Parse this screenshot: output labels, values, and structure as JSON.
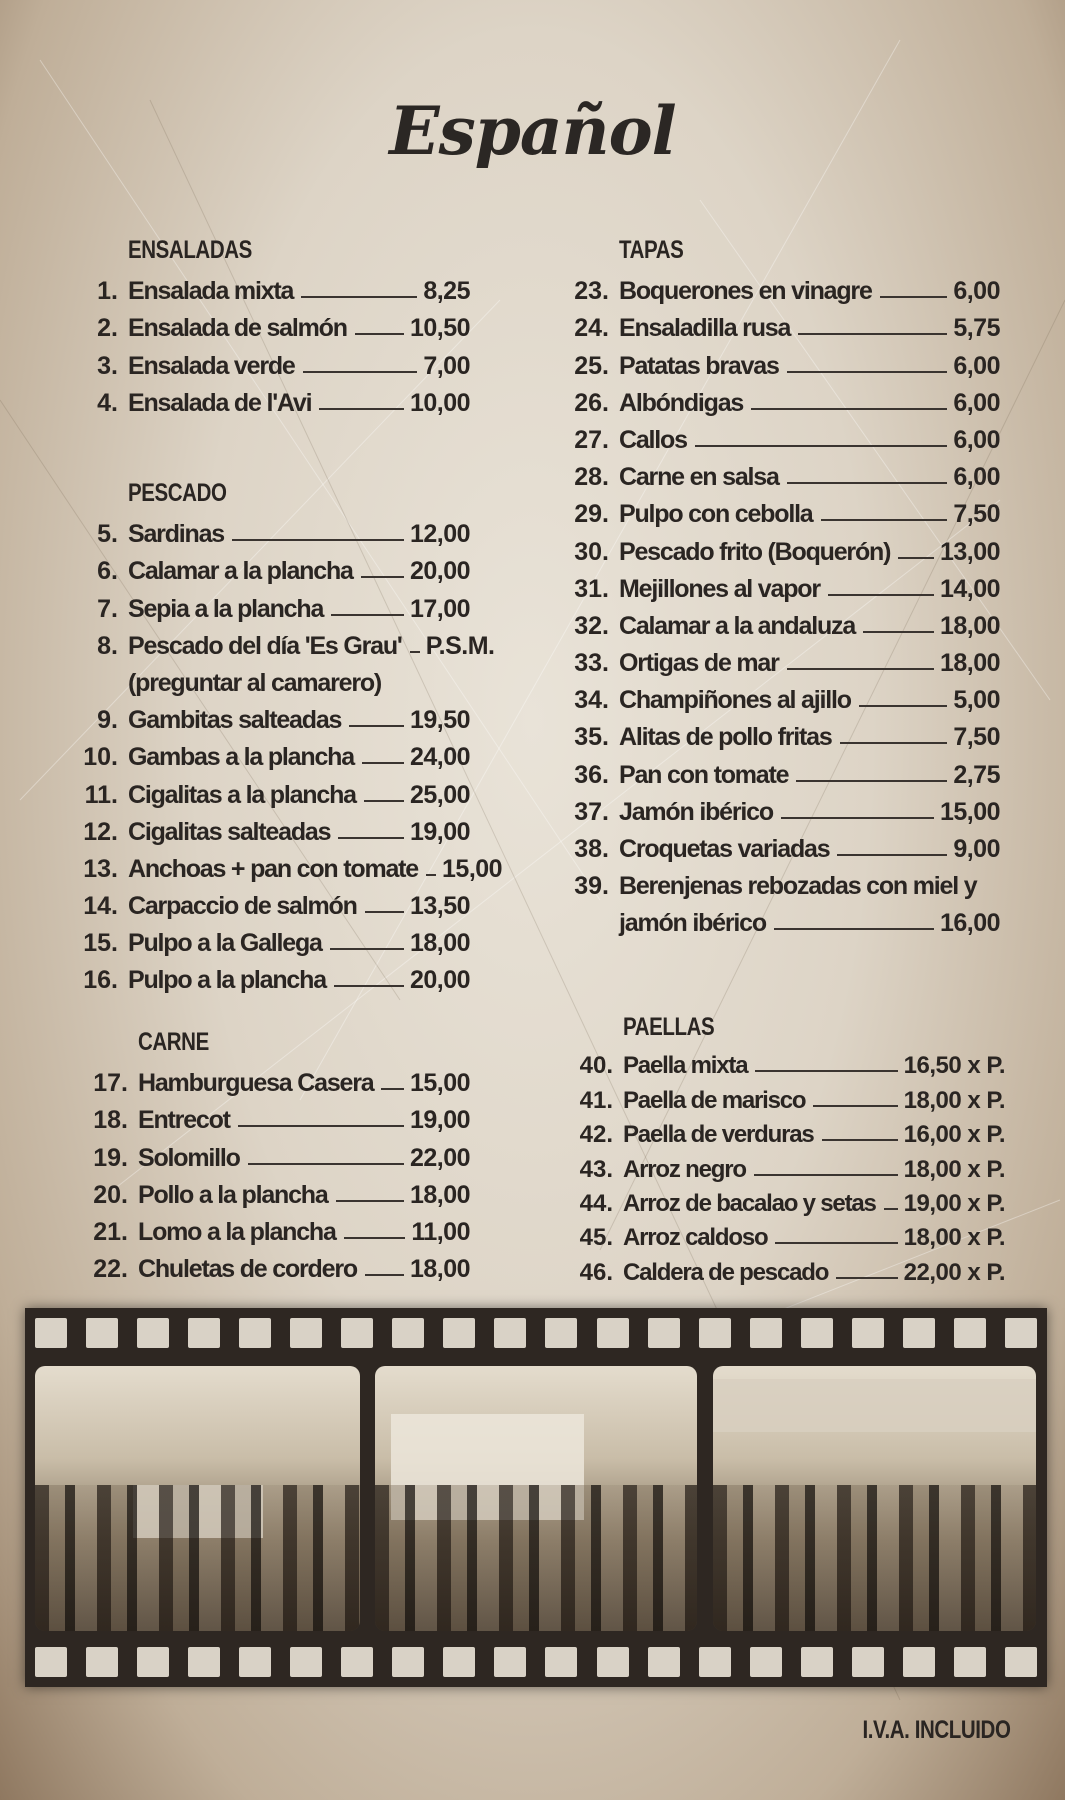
{
  "title": "Español",
  "sections": {
    "ensaladas": {
      "heading": "ENSALADAS",
      "items": [
        {
          "num": "1.",
          "name": "Ensalada mixta",
          "price": "8,25"
        },
        {
          "num": "2.",
          "name": "Ensalada de salmón",
          "price": "10,50"
        },
        {
          "num": "3.",
          "name": "Ensalada verde",
          "price": "7,00"
        },
        {
          "num": "4.",
          "name": "Ensalada de l'Avi",
          "price": "10,00"
        }
      ]
    },
    "pescado": {
      "heading": "PESCADO",
      "items": [
        {
          "num": "5.",
          "name": "Sardinas",
          "price": "12,00"
        },
        {
          "num": "6.",
          "name": "Calamar a la plancha",
          "price": "20,00"
        },
        {
          "num": "7.",
          "name": "Sepia a la plancha",
          "price": "17,00"
        },
        {
          "num": "8.",
          "name": "Pescado del día 'Es Grau'",
          "price": "P.S.M."
        },
        {
          "num": "",
          "name": "(preguntar al camarero)",
          "price": "",
          "cont": true
        },
        {
          "num": "9.",
          "name": "Gambitas salteadas",
          "price": "19,50"
        },
        {
          "num": "10.",
          "name": "Gambas a la plancha",
          "price": "24,00"
        },
        {
          "num": "11.",
          "name": "Cigalitas a la plancha",
          "price": "25,00"
        },
        {
          "num": "12.",
          "name": "Cigalitas salteadas",
          "price": "19,00"
        },
        {
          "num": "13.",
          "name": "Anchoas + pan con tomate",
          "price": "15,00"
        },
        {
          "num": "14.",
          "name": "Carpaccio de salmón",
          "price": "13,50"
        },
        {
          "num": "15.",
          "name": "Pulpo a la Gallega",
          "price": "18,00"
        },
        {
          "num": "16.",
          "name": "Pulpo a la plancha",
          "price": "20,00"
        }
      ]
    },
    "carne": {
      "heading": "CARNE",
      "items": [
        {
          "num": "17.",
          "name": "Hamburguesa Casera",
          "price": "15,00"
        },
        {
          "num": "18.",
          "name": "Entrecot",
          "price": "19,00"
        },
        {
          "num": "19.",
          "name": "Solomillo",
          "price": "22,00"
        },
        {
          "num": "20.",
          "name": "Pollo a la plancha",
          "price": "18,00"
        },
        {
          "num": "21.",
          "name": "Lomo a la plancha",
          "price": "11,00"
        },
        {
          "num": "22.",
          "name": "Chuletas de cordero",
          "price": "18,00"
        }
      ]
    },
    "tapas": {
      "heading": "TAPAS",
      "items": [
        {
          "num": "23.",
          "name": "Boquerones en vinagre",
          "price": "6,00"
        },
        {
          "num": "24.",
          "name": "Ensaladilla rusa",
          "price": "5,75"
        },
        {
          "num": "25.",
          "name": "Patatas bravas",
          "price": "6,00"
        },
        {
          "num": "26.",
          "name": "Albóndigas",
          "price": "6,00"
        },
        {
          "num": "27.",
          "name": "Callos",
          "price": "6,00"
        },
        {
          "num": "28.",
          "name": "Carne en salsa",
          "price": "6,00"
        },
        {
          "num": "29.",
          "name": "Pulpo con cebolla",
          "price": "7,50"
        },
        {
          "num": "30.",
          "name": "Pescado frito (Boquerón)",
          "price": "13,00"
        },
        {
          "num": "31.",
          "name": "Mejillones al vapor",
          "price": "14,00"
        },
        {
          "num": "32.",
          "name": "Calamar a la andaluza",
          "price": "18,00"
        },
        {
          "num": "33.",
          "name": "Ortigas de mar",
          "price": "18,00"
        },
        {
          "num": "34.",
          "name": "Champiñones al ajillo",
          "price": "5,00"
        },
        {
          "num": "35.",
          "name": "Alitas de pollo fritas",
          "price": "7,50"
        },
        {
          "num": "36.",
          "name": "Pan con tomate",
          "price": "2,75"
        },
        {
          "num": "37.",
          "name": "Jamón ibérico",
          "price": "15,00"
        },
        {
          "num": "38.",
          "name": "Croquetas variadas",
          "price": "9,00"
        },
        {
          "num": "39.",
          "name": "Berenjenas rebozadas con miel y",
          "price": "",
          "cont": true
        },
        {
          "num": "",
          "name": "jamón ibérico",
          "price": "16,00"
        }
      ]
    },
    "paellas": {
      "heading": "PAELLAS",
      "items": [
        {
          "num": "40.",
          "name": "Paella mixta",
          "price": "16,50 x P."
        },
        {
          "num": "41.",
          "name": "Paella de marisco",
          "price": "18,00 x P."
        },
        {
          "num": "42.",
          "name": "Paella de verduras",
          "price": "16,00 x P."
        },
        {
          "num": "43.",
          "name": "Arroz negro",
          "price": "18,00 x P."
        },
        {
          "num": "44.",
          "name": "Arroz de bacalao y setas",
          "price": "19,00 x P."
        },
        {
          "num": "45.",
          "name": "Arroz caldoso",
          "price": "18,00 x P."
        },
        {
          "num": "46.",
          "name": "Caldera de pescado",
          "price": "22,00 x P."
        }
      ]
    }
  },
  "footer": {
    "tax_note": "I.V.A. INCLUIDO"
  },
  "colors": {
    "ink": "#2a2522",
    "paper": "#e2dacd",
    "film": "#2e2722"
  }
}
